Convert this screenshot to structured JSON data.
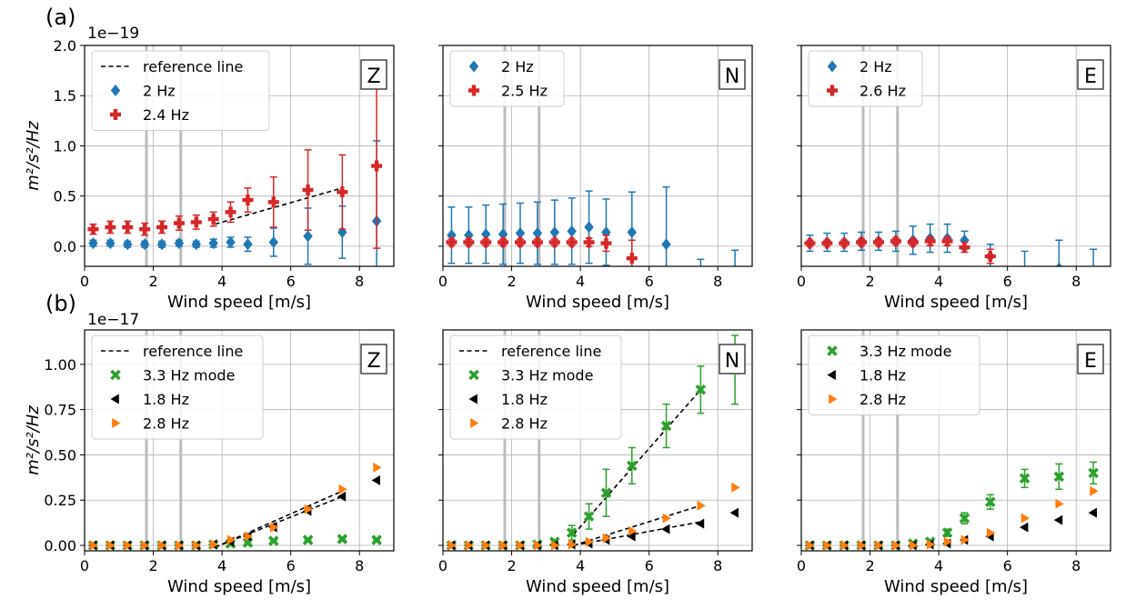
{
  "figure": {
    "row_labels": [
      "(a)",
      "(b)"
    ],
    "row_exponents": [
      "1e−19",
      "1e−17"
    ],
    "ylabel": "m²/s²/Hz"
  },
  "chart_data": [
    {
      "type": "scatter",
      "row": 0,
      "col": 0,
      "panel_label": "Z",
      "xlabel": "Wind speed [m/s]",
      "ylabel": "m²/s²/Hz",
      "xlim": [
        0,
        9
      ],
      "ylim": [
        -0.2,
        2.0
      ],
      "xticks": [
        0,
        2,
        4,
        6,
        8
      ],
      "yticks": [
        0.0,
        0.5,
        1.0,
        1.5,
        2.0
      ],
      "ytick_labels": [
        "0.0",
        "0.5",
        "1.0",
        "1.5",
        "2.0"
      ],
      "show_yticklabels": true,
      "grid": true,
      "legend": "top-left",
      "vlines": [
        1.8,
        2.8
      ],
      "series": [
        {
          "name": "reference line",
          "marker": "line",
          "color": "#000000",
          "x": [
            3.8,
            7.5
          ],
          "y": [
            0.22,
            0.58
          ]
        },
        {
          "name": "2 Hz",
          "marker": "diamond",
          "color": "#1f77b4",
          "x": [
            0.25,
            0.75,
            1.25,
            1.75,
            2.25,
            2.75,
            3.25,
            3.75,
            4.25,
            4.75,
            5.5,
            6.5,
            7.5,
            8.5
          ],
          "y": [
            0.03,
            0.03,
            0.02,
            0.02,
            0.02,
            0.03,
            0.02,
            0.03,
            0.04,
            0.02,
            0.04,
            0.1,
            0.14,
            0.25
          ],
          "err": [
            0.03,
            0.03,
            0.03,
            0.03,
            0.03,
            0.03,
            0.03,
            0.04,
            0.05,
            0.07,
            0.14,
            0.28,
            0.26,
            0.8
          ]
        },
        {
          "name": "2.4 Hz",
          "marker": "plus",
          "color": "#d62728",
          "x": [
            0.25,
            0.75,
            1.25,
            1.75,
            2.25,
            2.75,
            3.25,
            3.75,
            4.25,
            4.75,
            5.5,
            6.5,
            7.5,
            8.5
          ],
          "y": [
            0.17,
            0.19,
            0.19,
            0.17,
            0.19,
            0.23,
            0.24,
            0.27,
            0.34,
            0.46,
            0.44,
            0.56,
            0.54,
            0.8
          ],
          "err": [
            0.05,
            0.06,
            0.06,
            0.06,
            0.06,
            0.07,
            0.07,
            0.07,
            0.1,
            0.12,
            0.25,
            0.4,
            0.37,
            0.82
          ]
        }
      ]
    },
    {
      "type": "scatter",
      "row": 0,
      "col": 1,
      "panel_label": "N",
      "xlabel": "Wind speed [m/s]",
      "ylabel": "",
      "xlim": [
        0,
        9
      ],
      "ylim": [
        -0.2,
        2.0
      ],
      "xticks": [
        0,
        2,
        4,
        6,
        8
      ],
      "yticks": [
        0.0,
        0.5,
        1.0,
        1.5,
        2.0
      ],
      "ytick_labels": [],
      "show_yticklabels": false,
      "grid": true,
      "legend": "top-left",
      "vlines": [
        1.8,
        2.8
      ],
      "series": [
        {
          "name": "2 Hz",
          "marker": "diamond",
          "color": "#1f77b4",
          "x": [
            0.25,
            0.75,
            1.25,
            1.75,
            2.25,
            2.75,
            3.25,
            3.75,
            4.25,
            4.75,
            5.5,
            6.5,
            7.5,
            8.5
          ],
          "y": [
            0.11,
            0.11,
            0.12,
            0.12,
            0.13,
            0.13,
            0.14,
            0.15,
            0.19,
            0.14,
            0.14,
            0.02,
            -0.28,
            -0.25
          ],
          "err": [
            0.28,
            0.28,
            0.29,
            0.3,
            0.3,
            0.31,
            0.32,
            0.33,
            0.36,
            0.33,
            0.4,
            0.57,
            0.15,
            0.21
          ]
        },
        {
          "name": "2.5 Hz",
          "marker": "plus",
          "color": "#d62728",
          "x": [
            0.25,
            0.75,
            1.25,
            1.75,
            2.25,
            2.75,
            3.25,
            3.75,
            4.25,
            4.75,
            5.5
          ],
          "y": [
            0.04,
            0.04,
            0.04,
            0.04,
            0.04,
            0.04,
            0.04,
            0.04,
            0.04,
            0.03,
            -0.12
          ],
          "err": [
            0.03,
            0.03,
            0.03,
            0.03,
            0.03,
            0.03,
            0.03,
            0.03,
            0.04,
            0.08,
            0.18
          ]
        }
      ]
    },
    {
      "type": "scatter",
      "row": 0,
      "col": 2,
      "panel_label": "E",
      "xlabel": "Wind speed [m/s]",
      "ylabel": "",
      "xlim": [
        0,
        9
      ],
      "ylim": [
        -0.2,
        2.0
      ],
      "xticks": [
        0,
        2,
        4,
        6,
        8
      ],
      "yticks": [
        0.0,
        0.5,
        1.0,
        1.5,
        2.0
      ],
      "ytick_labels": [],
      "show_yticklabels": false,
      "grid": true,
      "legend": "top-left",
      "vlines": [
        1.8,
        2.8
      ],
      "series": [
        {
          "name": "2 Hz",
          "marker": "diamond",
          "color": "#1f77b4",
          "x": [
            0.25,
            0.75,
            1.25,
            1.75,
            2.25,
            2.75,
            3.25,
            3.75,
            4.25,
            4.75,
            5.5,
            6.5,
            7.5,
            8.5
          ],
          "y": [
            0.03,
            0.04,
            0.04,
            0.05,
            0.05,
            0.05,
            0.06,
            0.08,
            0.08,
            0.06,
            -0.1,
            -0.25,
            -0.22,
            -0.3
          ],
          "err": [
            0.08,
            0.09,
            0.09,
            0.09,
            0.09,
            0.1,
            0.14,
            0.14,
            0.14,
            0.09,
            0.12,
            0.2,
            0.28,
            0.27
          ]
        },
        {
          "name": "2.6 Hz",
          "marker": "plus",
          "color": "#d62728",
          "x": [
            0.25,
            0.75,
            1.25,
            1.75,
            2.25,
            2.75,
            3.25,
            3.75,
            4.25,
            4.75,
            5.5
          ],
          "y": [
            0.03,
            0.03,
            0.03,
            0.04,
            0.04,
            0.05,
            0.04,
            0.05,
            0.05,
            -0.01,
            -0.1
          ],
          "err": [
            0.03,
            0.03,
            0.03,
            0.03,
            0.03,
            0.03,
            0.03,
            0.04,
            0.04,
            0.05,
            0.07
          ]
        }
      ]
    },
    {
      "type": "scatter",
      "row": 1,
      "col": 0,
      "panel_label": "Z",
      "xlabel": "Wind speed [m/s]",
      "ylabel": "m²/s²/Hz",
      "xlim": [
        0,
        9
      ],
      "ylim": [
        -0.03,
        1.19
      ],
      "xticks": [
        0,
        2,
        4,
        6,
        8
      ],
      "yticks": [
        0.0,
        0.25,
        0.5,
        0.75,
        1.0
      ],
      "ytick_labels": [
        "0.00",
        "0.25",
        "0.50",
        "0.75",
        "1.00"
      ],
      "show_yticklabels": true,
      "grid": true,
      "legend": "top-left",
      "vlines": [
        1.8,
        2.8
      ],
      "series": [
        {
          "name": "reference line",
          "marker": "line",
          "color": "#000000",
          "x": [
            3.8,
            7.5
          ],
          "y": [
            -0.01,
            0.3
          ]
        },
        {
          "name": "reference line",
          "marker": "line",
          "color": "#000000",
          "x": [
            3.8,
            7.5
          ],
          "y": [
            -0.01,
            0.27
          ],
          "legend": false
        },
        {
          "name": "3.3 Hz mode",
          "marker": "x",
          "color": "#2ca02c",
          "x": [
            0.25,
            0.75,
            1.25,
            1.75,
            2.25,
            2.75,
            3.25,
            3.75,
            4.25,
            4.75,
            5.5,
            6.5,
            7.5,
            8.5
          ],
          "y": [
            0.0,
            0.0,
            0.0,
            0.0,
            0.0,
            0.0,
            0.0,
            0.005,
            0.01,
            0.015,
            0.025,
            0.03,
            0.035,
            0.03
          ],
          "err": [
            0,
            0,
            0,
            0,
            0,
            0,
            0,
            0.005,
            0.005,
            0.005,
            0.005,
            0.005,
            0.005,
            0.005
          ]
        },
        {
          "name": "1.8 Hz",
          "marker": "tri-left",
          "color": "#000000",
          "x": [
            0.25,
            0.75,
            1.25,
            1.75,
            2.25,
            2.75,
            3.25,
            3.75,
            4.25,
            4.75,
            5.5,
            6.5,
            7.5,
            8.5
          ],
          "y": [
            0.0,
            0.0,
            0.0,
            0.0,
            0.0,
            0.0,
            0.0,
            0.005,
            0.02,
            0.05,
            0.1,
            0.19,
            0.27,
            0.36
          ]
        },
        {
          "name": "2.8 Hz",
          "marker": "tri-right",
          "color": "#ff7f0e",
          "x": [
            0.25,
            0.75,
            1.25,
            1.75,
            2.25,
            2.75,
            3.25,
            3.75,
            4.25,
            4.75,
            5.5,
            6.5,
            7.5,
            8.5
          ],
          "y": [
            0.0,
            0.0,
            0.0,
            0.0,
            0.0,
            0.0,
            0.0,
            0.005,
            0.03,
            0.05,
            0.1,
            0.2,
            0.31,
            0.43
          ]
        }
      ]
    },
    {
      "type": "scatter",
      "row": 1,
      "col": 1,
      "panel_label": "N",
      "xlabel": "Wind speed [m/s]",
      "ylabel": "",
      "xlim": [
        0,
        9
      ],
      "ylim": [
        -0.03,
        1.19
      ],
      "xticks": [
        0,
        2,
        4,
        6,
        8
      ],
      "yticks": [
        0.0,
        0.25,
        0.5,
        0.75,
        1.0
      ],
      "ytick_labels": [],
      "show_yticklabels": false,
      "grid": true,
      "legend": "top-left",
      "vlines": [
        1.8,
        2.8
      ],
      "series": [
        {
          "name": "reference line",
          "marker": "line",
          "color": "#000000",
          "x": [
            3.8,
            7.5
          ],
          "y": [
            0.06,
            0.86
          ]
        },
        {
          "name": "reference line",
          "marker": "line",
          "color": "#000000",
          "x": [
            3.8,
            7.5
          ],
          "y": [
            0.0,
            0.22
          ],
          "legend": false
        },
        {
          "name": "reference line",
          "marker": "line",
          "color": "#000000",
          "x": [
            3.8,
            7.5
          ],
          "y": [
            0.0,
            0.13
          ],
          "legend": false
        },
        {
          "name": "3.3 Hz mode",
          "marker": "x",
          "color": "#2ca02c",
          "x": [
            0.25,
            0.75,
            1.25,
            1.75,
            2.25,
            2.75,
            3.25,
            3.75,
            4.25,
            4.75,
            5.5,
            6.5,
            7.5,
            8.5
          ],
          "y": [
            0.0,
            0.0,
            0.0,
            0.0,
            0.0,
            0.005,
            0.02,
            0.07,
            0.16,
            0.29,
            0.44,
            0.66,
            0.86,
            0.97
          ],
          "err": [
            0,
            0,
            0,
            0,
            0,
            0.005,
            0.01,
            0.04,
            0.07,
            0.13,
            0.1,
            0.12,
            0.13,
            0.19
          ]
        },
        {
          "name": "1.8 Hz",
          "marker": "tri-left",
          "color": "#000000",
          "x": [
            0.25,
            0.75,
            1.25,
            1.75,
            2.25,
            2.75,
            3.25,
            3.75,
            4.25,
            4.75,
            5.5,
            6.5,
            7.5,
            8.5
          ],
          "y": [
            0.0,
            0.0,
            0.0,
            0.0,
            0.0,
            0.0,
            0.0,
            0.005,
            0.01,
            0.03,
            0.05,
            0.09,
            0.12,
            0.18
          ]
        },
        {
          "name": "2.8 Hz",
          "marker": "tri-right",
          "color": "#ff7f0e",
          "x": [
            0.25,
            0.75,
            1.25,
            1.75,
            2.25,
            2.75,
            3.25,
            3.75,
            4.25,
            4.75,
            5.5,
            6.5,
            7.5,
            8.5
          ],
          "y": [
            0.0,
            0.0,
            0.0,
            0.0,
            0.0,
            0.0,
            0.0,
            0.005,
            0.02,
            0.04,
            0.08,
            0.15,
            0.22,
            0.32
          ]
        }
      ]
    },
    {
      "type": "scatter",
      "row": 1,
      "col": 2,
      "panel_label": "E",
      "xlabel": "Wind speed [m/s]",
      "ylabel": "",
      "xlim": [
        0,
        9
      ],
      "ylim": [
        -0.03,
        1.19
      ],
      "xticks": [
        0,
        2,
        4,
        6,
        8
      ],
      "yticks": [
        0.0,
        0.25,
        0.5,
        0.75,
        1.0
      ],
      "ytick_labels": [],
      "show_yticklabels": false,
      "grid": true,
      "legend": "top-left",
      "vlines": [
        1.8,
        2.8
      ],
      "series": [
        {
          "name": "3.3 Hz mode",
          "marker": "x",
          "color": "#2ca02c",
          "x": [
            0.25,
            0.75,
            1.25,
            1.75,
            2.25,
            2.75,
            3.25,
            3.75,
            4.25,
            4.75,
            5.5,
            6.5,
            7.5,
            8.5
          ],
          "y": [
            0.0,
            0.0,
            0.0,
            0.0,
            0.0,
            0.0,
            0.01,
            0.02,
            0.07,
            0.15,
            0.24,
            0.37,
            0.38,
            0.4
          ],
          "err": [
            0,
            0,
            0,
            0,
            0,
            0,
            0.005,
            0.01,
            0.02,
            0.03,
            0.04,
            0.05,
            0.07,
            0.06
          ]
        },
        {
          "name": "1.8 Hz",
          "marker": "tri-left",
          "color": "#000000",
          "x": [
            0.25,
            0.75,
            1.25,
            1.75,
            2.25,
            2.75,
            3.25,
            3.75,
            4.25,
            4.75,
            5.5,
            6.5,
            7.5,
            8.5
          ],
          "y": [
            0.0,
            0.0,
            0.0,
            0.0,
            0.0,
            0.0,
            0.0,
            0.005,
            0.01,
            0.03,
            0.05,
            0.1,
            0.14,
            0.18
          ]
        },
        {
          "name": "2.8 Hz",
          "marker": "tri-right",
          "color": "#ff7f0e",
          "x": [
            0.25,
            0.75,
            1.25,
            1.75,
            2.25,
            2.75,
            3.25,
            3.75,
            4.25,
            4.75,
            5.5,
            6.5,
            7.5,
            8.5
          ],
          "y": [
            0.0,
            0.0,
            0.0,
            0.0,
            0.0,
            0.0,
            0.0,
            0.005,
            0.02,
            0.03,
            0.07,
            0.15,
            0.23,
            0.3
          ]
        }
      ]
    }
  ]
}
